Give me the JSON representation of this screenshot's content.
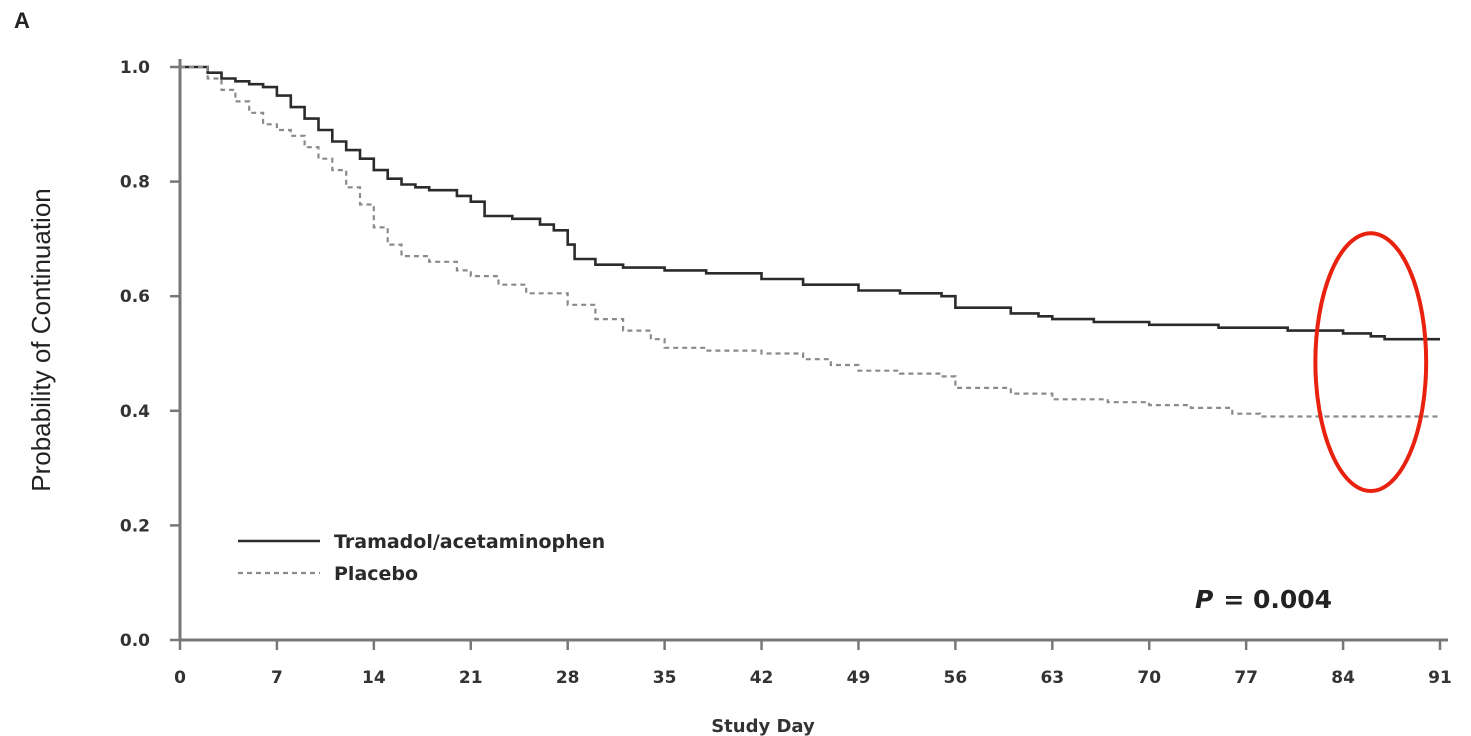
{
  "panel_label": "A",
  "chart_data": {
    "type": "line",
    "title": "",
    "xlabel": "Study Day",
    "ylabel": "Probability of Continuation",
    "xlim": [
      0,
      91
    ],
    "ylim": [
      0,
      1.0
    ],
    "x_ticks": [
      0,
      7,
      14,
      21,
      28,
      35,
      42,
      49,
      56,
      63,
      70,
      77,
      84,
      91
    ],
    "x_tick_labels": [
      "0",
      "7",
      "14",
      "21",
      "28",
      "35",
      "42",
      "49",
      "56",
      "63",
      "70",
      "77",
      "84",
      "91"
    ],
    "y_ticks": [
      0,
      0.2,
      0.4,
      0.6,
      0.8,
      1.0
    ],
    "y_tick_labels": [
      "0.0",
      "0.2",
      "0.4",
      "0.6",
      "0.8",
      "1.0"
    ],
    "grid": false,
    "legend_position": "bottom-left",
    "annotation": {
      "p_label": "P",
      "p_value": "= 0.004"
    },
    "highlight": {
      "shape": "ellipse",
      "color": "#e8220f",
      "x_center": 86,
      "y_center": 0.485,
      "x_radius": 4,
      "y_radius": 0.225
    },
    "series": [
      {
        "name": "Tramadol/acetaminophen",
        "style": "solid",
        "color": "#2b2b2b",
        "points": [
          [
            0,
            1.0
          ],
          [
            1,
            1.0
          ],
          [
            2,
            0.99
          ],
          [
            3,
            0.98
          ],
          [
            4,
            0.975
          ],
          [
            5,
            0.97
          ],
          [
            6,
            0.965
          ],
          [
            7,
            0.95
          ],
          [
            8,
            0.93
          ],
          [
            9,
            0.91
          ],
          [
            10,
            0.89
          ],
          [
            11,
            0.87
          ],
          [
            12,
            0.855
          ],
          [
            13,
            0.84
          ],
          [
            14,
            0.82
          ],
          [
            15,
            0.805
          ],
          [
            16,
            0.795
          ],
          [
            17,
            0.79
          ],
          [
            18,
            0.785
          ],
          [
            20,
            0.775
          ],
          [
            21,
            0.765
          ],
          [
            22,
            0.74
          ],
          [
            24,
            0.735
          ],
          [
            26,
            0.725
          ],
          [
            27,
            0.715
          ],
          [
            28,
            0.69
          ],
          [
            28.5,
            0.665
          ],
          [
            30,
            0.655
          ],
          [
            32,
            0.65
          ],
          [
            35,
            0.645
          ],
          [
            38,
            0.64
          ],
          [
            42,
            0.63
          ],
          [
            45,
            0.62
          ],
          [
            49,
            0.61
          ],
          [
            52,
            0.605
          ],
          [
            55,
            0.6
          ],
          [
            56,
            0.58
          ],
          [
            60,
            0.57
          ],
          [
            62,
            0.565
          ],
          [
            63,
            0.56
          ],
          [
            66,
            0.555
          ],
          [
            70,
            0.55
          ],
          [
            75,
            0.545
          ],
          [
            80,
            0.54
          ],
          [
            84,
            0.535
          ],
          [
            86,
            0.53
          ],
          [
            87,
            0.525
          ],
          [
            91,
            0.525
          ]
        ]
      },
      {
        "name": "Placebo",
        "style": "dashed",
        "color": "#8a8a8a",
        "points": [
          [
            0,
            1.0
          ],
          [
            1,
            1.0
          ],
          [
            2,
            0.98
          ],
          [
            3,
            0.96
          ],
          [
            4,
            0.94
          ],
          [
            5,
            0.92
          ],
          [
            6,
            0.9
          ],
          [
            7,
            0.89
          ],
          [
            8,
            0.88
          ],
          [
            9,
            0.86
          ],
          [
            10,
            0.84
          ],
          [
            11,
            0.82
          ],
          [
            12,
            0.79
          ],
          [
            13,
            0.76
          ],
          [
            14,
            0.72
          ],
          [
            15,
            0.69
          ],
          [
            16,
            0.67
          ],
          [
            18,
            0.66
          ],
          [
            20,
            0.645
          ],
          [
            21,
            0.635
          ],
          [
            23,
            0.62
          ],
          [
            25,
            0.605
          ],
          [
            28,
            0.585
          ],
          [
            30,
            0.56
          ],
          [
            32,
            0.54
          ],
          [
            34,
            0.525
          ],
          [
            35,
            0.51
          ],
          [
            38,
            0.505
          ],
          [
            42,
            0.5
          ],
          [
            45,
            0.49
          ],
          [
            47,
            0.48
          ],
          [
            49,
            0.47
          ],
          [
            52,
            0.465
          ],
          [
            55,
            0.46
          ],
          [
            56,
            0.44
          ],
          [
            60,
            0.43
          ],
          [
            63,
            0.42
          ],
          [
            67,
            0.415
          ],
          [
            70,
            0.41
          ],
          [
            73,
            0.405
          ],
          [
            76,
            0.395
          ],
          [
            78,
            0.39
          ],
          [
            91,
            0.39
          ]
        ]
      }
    ]
  }
}
